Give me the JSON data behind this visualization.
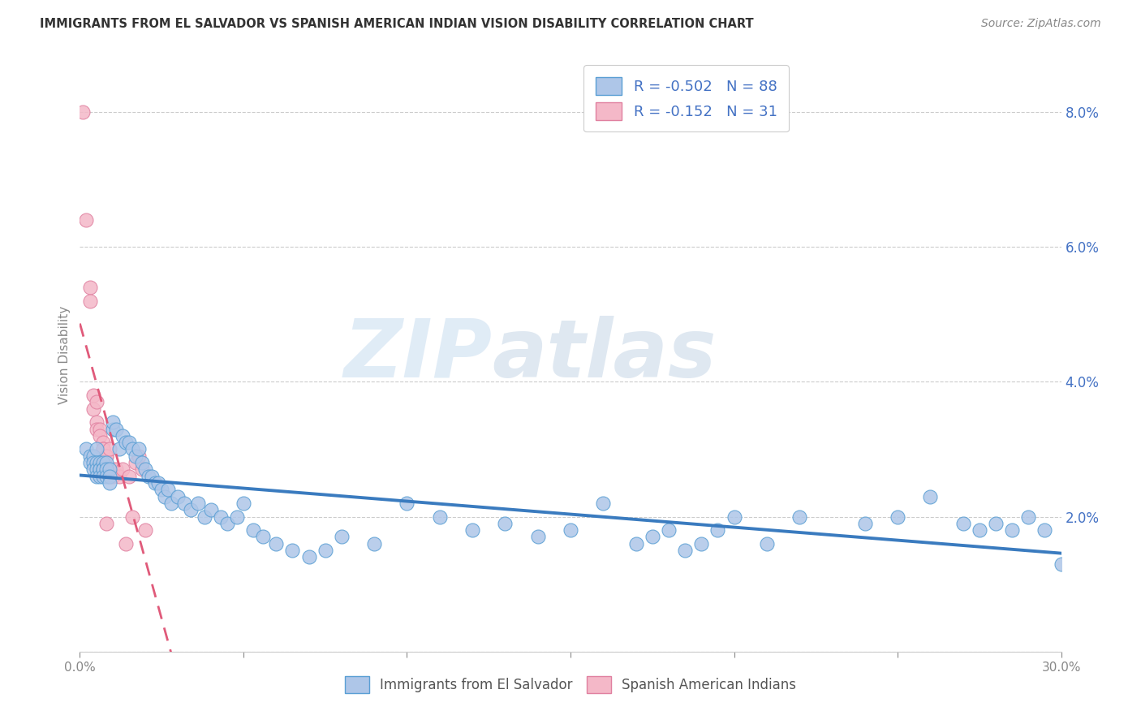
{
  "title": "IMMIGRANTS FROM EL SALVADOR VS SPANISH AMERICAN INDIAN VISION DISABILITY CORRELATION CHART",
  "source": "Source: ZipAtlas.com",
  "ylabel": "Vision Disability",
  "legend_label_blue": "Immigrants from El Salvador",
  "legend_label_pink": "Spanish American Indians",
  "R_blue": -0.502,
  "N_blue": 88,
  "R_pink": -0.152,
  "N_pink": 31,
  "xlim": [
    0.0,
    0.3
  ],
  "ylim": [
    0.0,
    0.088
  ],
  "color_blue": "#aec6e8",
  "color_blue_line": "#3a7bbf",
  "color_blue_edge": "#5a9fd4",
  "color_pink": "#f4b8c8",
  "color_pink_line": "#e05a7a",
  "color_pink_edge": "#e080a0",
  "watermark_zip": "ZIP",
  "watermark_atlas": "atlas",
  "blue_x": [
    0.002,
    0.003,
    0.003,
    0.004,
    0.004,
    0.004,
    0.005,
    0.005,
    0.005,
    0.005,
    0.006,
    0.006,
    0.006,
    0.006,
    0.007,
    0.007,
    0.007,
    0.007,
    0.008,
    0.008,
    0.008,
    0.009,
    0.009,
    0.009,
    0.01,
    0.01,
    0.011,
    0.012,
    0.013,
    0.014,
    0.015,
    0.016,
    0.017,
    0.018,
    0.019,
    0.02,
    0.021,
    0.022,
    0.023,
    0.024,
    0.025,
    0.026,
    0.027,
    0.028,
    0.03,
    0.032,
    0.034,
    0.036,
    0.038,
    0.04,
    0.043,
    0.045,
    0.048,
    0.05,
    0.053,
    0.056,
    0.06,
    0.065,
    0.07,
    0.075,
    0.08,
    0.09,
    0.1,
    0.11,
    0.12,
    0.13,
    0.14,
    0.15,
    0.16,
    0.17,
    0.175,
    0.18,
    0.185,
    0.19,
    0.195,
    0.2,
    0.21,
    0.22,
    0.24,
    0.25,
    0.26,
    0.27,
    0.275,
    0.28,
    0.285,
    0.29,
    0.295,
    0.3
  ],
  "blue_y": [
    0.03,
    0.029,
    0.028,
    0.029,
    0.028,
    0.027,
    0.03,
    0.028,
    0.027,
    0.026,
    0.028,
    0.027,
    0.027,
    0.026,
    0.028,
    0.027,
    0.027,
    0.026,
    0.028,
    0.027,
    0.026,
    0.027,
    0.026,
    0.025,
    0.033,
    0.034,
    0.033,
    0.03,
    0.032,
    0.031,
    0.031,
    0.03,
    0.029,
    0.03,
    0.028,
    0.027,
    0.026,
    0.026,
    0.025,
    0.025,
    0.024,
    0.023,
    0.024,
    0.022,
    0.023,
    0.022,
    0.021,
    0.022,
    0.02,
    0.021,
    0.02,
    0.019,
    0.02,
    0.022,
    0.018,
    0.017,
    0.016,
    0.015,
    0.014,
    0.015,
    0.017,
    0.016,
    0.022,
    0.02,
    0.018,
    0.019,
    0.017,
    0.018,
    0.022,
    0.016,
    0.017,
    0.018,
    0.015,
    0.016,
    0.018,
    0.02,
    0.016,
    0.02,
    0.019,
    0.02,
    0.023,
    0.019,
    0.018,
    0.019,
    0.018,
    0.02,
    0.018,
    0.013
  ],
  "pink_x": [
    0.001,
    0.002,
    0.003,
    0.003,
    0.004,
    0.004,
    0.005,
    0.005,
    0.005,
    0.006,
    0.006,
    0.007,
    0.007,
    0.007,
    0.008,
    0.008,
    0.008,
    0.009,
    0.009,
    0.01,
    0.01,
    0.011,
    0.012,
    0.013,
    0.014,
    0.015,
    0.016,
    0.017,
    0.018,
    0.019,
    0.02
  ],
  "pink_y": [
    0.08,
    0.064,
    0.054,
    0.052,
    0.038,
    0.036,
    0.037,
    0.034,
    0.033,
    0.033,
    0.032,
    0.031,
    0.03,
    0.03,
    0.029,
    0.019,
    0.029,
    0.03,
    0.026,
    0.027,
    0.026,
    0.027,
    0.026,
    0.027,
    0.016,
    0.026,
    0.02,
    0.028,
    0.029,
    0.027,
    0.018
  ]
}
